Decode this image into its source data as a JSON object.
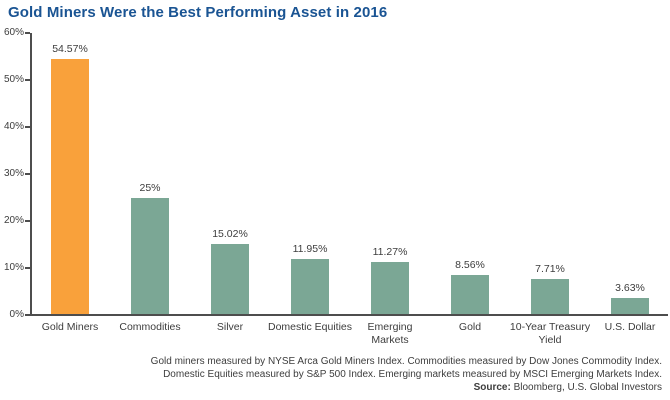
{
  "title": "Gold Miners Were the Best Performing Asset in 2016",
  "colors": {
    "title_blue": "#1a5493",
    "highlight_orange": "#f9a13b",
    "bar_teal": "#7ba795",
    "axis_gray": "#4d4d4d",
    "text_gray": "#3d3d3d"
  },
  "chart_data": {
    "type": "bar",
    "title": "Gold Miners Were the Best Performing Asset in 2016",
    "categories": [
      "Gold Miners",
      "Commodities",
      "Silver",
      "Domestic Equities",
      "Emerging\nMarkets",
      "Gold",
      "10-Year Treasury\nYield",
      "U.S. Dollar"
    ],
    "values": [
      54.57,
      25,
      15.02,
      11.95,
      11.27,
      8.56,
      7.71,
      3.63
    ],
    "value_labels": [
      "54.57%",
      "25%",
      "15.02%",
      "11.95%",
      "11.27%",
      "8.56%",
      "7.71%",
      "3.63%"
    ],
    "highlight_index": 0,
    "xlabel": "",
    "ylabel": "",
    "ylim": [
      0,
      60
    ],
    "yticks": [
      "0%",
      "10%",
      "20%",
      "30%",
      "40%",
      "50%",
      "60%"
    ],
    "grid": false,
    "legend": false
  },
  "footer": {
    "line1": "Gold miners measured by NYSE Arca Gold Miners Index. Commodities measured by Dow Jones Commodity Index.",
    "line2": "Domestic Equities measured by S&P 500 Index. Emerging markets measured by MSCI Emerging Markets Index.",
    "source_label": "Source:",
    "source_text": " Bloomberg, U.S. Global Investors"
  }
}
